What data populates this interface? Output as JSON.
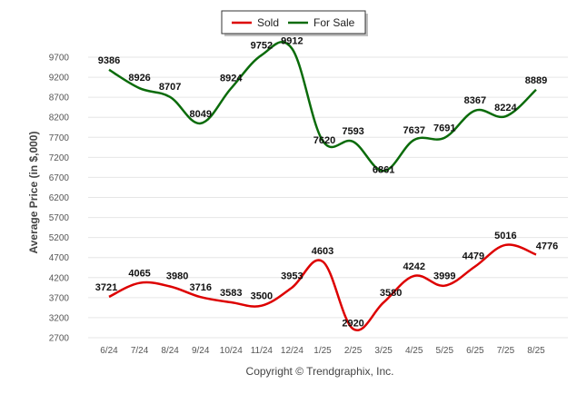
{
  "chart_data": {
    "type": "line",
    "categories": [
      "6/24",
      "7/24",
      "8/24",
      "9/24",
      "10/24",
      "11/24",
      "12/24",
      "1/25",
      "2/25",
      "3/25",
      "4/25",
      "5/25",
      "6/25",
      "7/25",
      "8/25"
    ],
    "series": [
      {
        "name": "Sold",
        "color": "#dd0000",
        "values": [
          3721,
          4065,
          3980,
          3716,
          3583,
          3500,
          3953,
          4603,
          2920,
          3580,
          4242,
          3999,
          4479,
          5016,
          4776
        ]
      },
      {
        "name": "For Sale",
        "color": "#0a6b0a",
        "values": [
          9386,
          8926,
          8707,
          8049,
          8924,
          9752,
          9912,
          7620,
          7593,
          6861,
          7637,
          7691,
          8367,
          8224,
          8889
        ]
      }
    ],
    "title": "",
    "xlabel": "",
    "ylabel": "Average Price (in $,000)",
    "ylim": [
      2700,
      9700
    ],
    "yticks": [
      2700,
      3200,
      3700,
      4200,
      4700,
      5200,
      5700,
      6200,
      6700,
      7200,
      7700,
      8200,
      8700,
      9200,
      9700
    ],
    "grid": true,
    "legend_position": "top-center"
  },
  "footer": {
    "copyright": "Copyright © Trendgraphix, Inc."
  }
}
